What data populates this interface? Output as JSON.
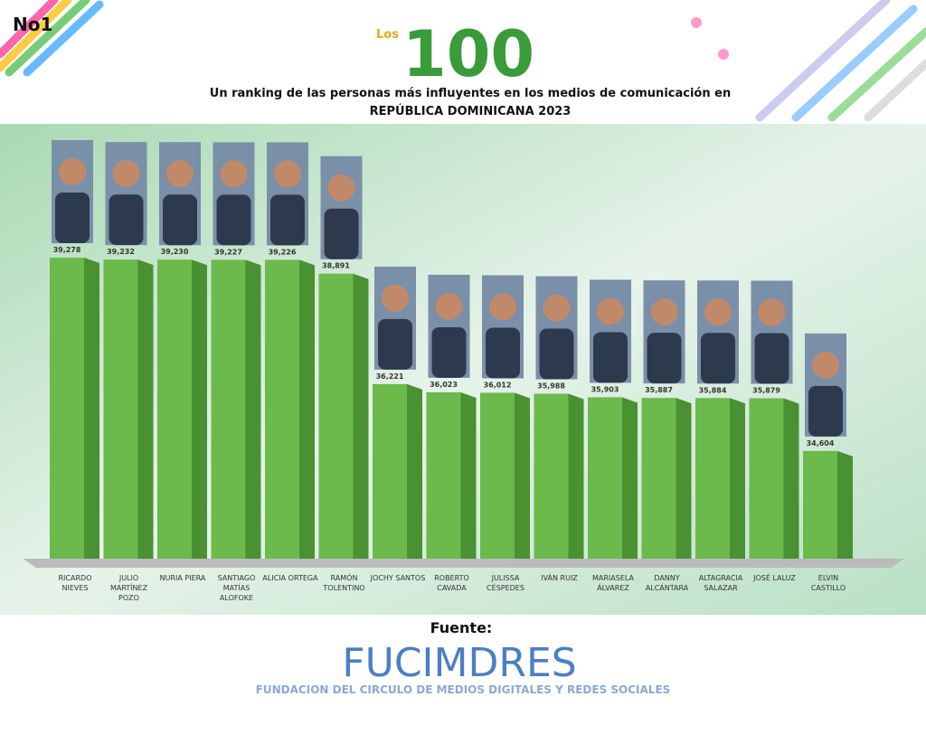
{
  "badge": "No1",
  "logo": {
    "small": "Los",
    "big": "100"
  },
  "chart_data": {
    "type": "bar3d",
    "title": "Un ranking de las personas más influyentes en los medios de comunicación en",
    "subtitle": "REPÚBLICA DOMINICANA 2023",
    "categories": [
      "RICARDO NIEVES",
      "JULIO MARTÍNEZ POZO",
      "NURIA PIERA",
      "SANTIAGO MATÍAS ALOFOKE",
      "ALICIA ORTEGA",
      "RAMÓN TOLENTINO",
      "JOCHY SANTOS",
      "ROBERTO CAVADA",
      "JULISSA CÉSPEDES",
      "IVÁN RUIZ",
      "MARIASELA ÁLVAREZ",
      "DANNY ALCÁNTARA",
      "ALTAGRACIA SALAZAR",
      "JOSÉ LALUZ",
      "ELVIN CASTILLO"
    ],
    "values": [
      39278,
      39232,
      39230,
      39227,
      39226,
      38891,
      36221,
      36023,
      36012,
      35988,
      35903,
      35887,
      35884,
      35879,
      34604
    ],
    "value_labels": [
      "39,278",
      "39,232",
      "39,230",
      "39,227",
      "39,226",
      "38,891",
      "36,221",
      "36,023",
      "36,012",
      "35,988",
      "35,903",
      "35,887",
      "35,884",
      "35,879",
      "34,604"
    ],
    "color": "#6cb94c",
    "side_color": "#4a9131",
    "ylim": [
      32000,
      40000
    ]
  },
  "source": {
    "label": "Fuente:",
    "name": "FUCIMDRES",
    "full": "FUNDACION DEL CIRCULO DE MEDIOS DIGITALES Y REDES SOCIALES"
  }
}
